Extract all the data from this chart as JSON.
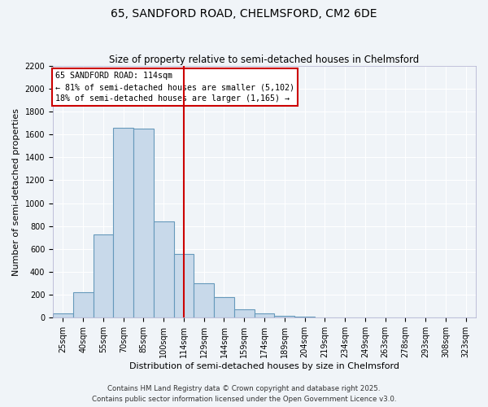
{
  "title": "65, SANDFORD ROAD, CHELMSFORD, CM2 6DE",
  "subtitle": "Size of property relative to semi-detached houses in Chelmsford",
  "xlabel": "Distribution of semi-detached houses by size in Chelmsford",
  "ylabel": "Number of semi-detached properties",
  "bin_labels": [
    "25sqm",
    "40sqm",
    "55sqm",
    "70sqm",
    "85sqm",
    "100sqm",
    "114sqm",
    "129sqm",
    "144sqm",
    "159sqm",
    "174sqm",
    "189sqm",
    "204sqm",
    "219sqm",
    "234sqm",
    "249sqm",
    "263sqm",
    "278sqm",
    "293sqm",
    "308sqm",
    "323sqm"
  ],
  "bar_values": [
    40,
    220,
    730,
    1660,
    1650,
    840,
    560,
    300,
    180,
    70,
    35,
    20,
    10,
    5,
    2,
    2,
    0,
    0,
    0,
    0,
    0
  ],
  "bar_color": "#c8d9ea",
  "bar_edge_color": "#6699bb",
  "vline_index": 6,
  "vline_color": "#cc0000",
  "ylim": [
    0,
    2200
  ],
  "yticks": [
    0,
    200,
    400,
    600,
    800,
    1000,
    1200,
    1400,
    1600,
    1800,
    2000,
    2200
  ],
  "annotation_title": "65 SANDFORD ROAD: 114sqm",
  "annotation_line1": "← 81% of semi-detached houses are smaller (5,102)",
  "annotation_line2": "18% of semi-detached houses are larger (1,165) →",
  "annotation_box_color": "#ffffff",
  "annotation_box_edge": "#cc0000",
  "footer_line1": "Contains HM Land Registry data © Crown copyright and database right 2025.",
  "footer_line2": "Contains public sector information licensed under the Open Government Licence v3.0.",
  "bg_color": "#f0f4f8",
  "grid_color": "#ffffff",
  "title_fontsize": 10,
  "subtitle_fontsize": 8.5,
  "tick_fontsize": 7,
  "ylabel_fontsize": 8,
  "xlabel_fontsize": 8
}
